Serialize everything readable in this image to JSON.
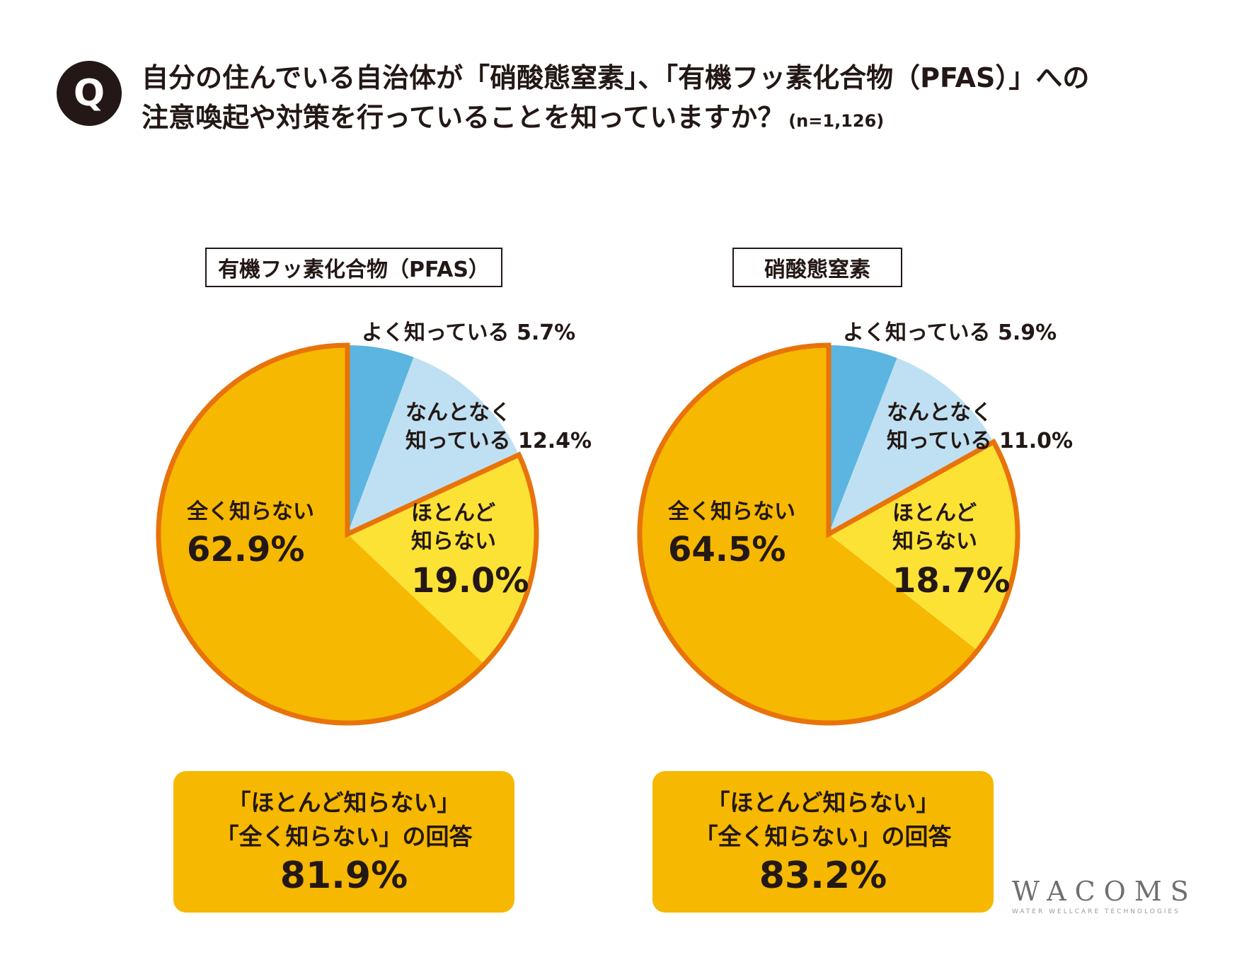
{
  "header": {
    "q_mark": "Q",
    "line1": "自分の住んでいる自治体が「硝酸態窒素」、「有機フッ素化合物（PFAS）」への",
    "line2": "注意喚起や対策を行っていることを知っていますか？",
    "n": "(n=1,126)"
  },
  "colors": {
    "yoku": "#5bb5e0",
    "nantonaku": "#bfe0f2",
    "hotondo": "#fde236",
    "mattaku": "#f6b800",
    "outline": "#e8730a"
  },
  "chart_data": [
    {
      "type": "pie",
      "title": "有機フッ素化合物（PFAS）",
      "slices": [
        {
          "label": "よく知っている",
          "value": 5.7,
          "value_label": "5.7%"
        },
        {
          "label": "なんとなく知っている",
          "value": 12.4,
          "value_label": "12.4%"
        },
        {
          "label": "ほとんど知らない",
          "value": 19.0,
          "value_label": "19.0%"
        },
        {
          "label": "全く知らない",
          "value": 62.9,
          "value_label": "62.9%"
        }
      ]
    },
    {
      "type": "pie",
      "title": "硝酸態窒素",
      "slices": [
        {
          "label": "よく知っている",
          "value": 5.9,
          "value_label": "5.9%"
        },
        {
          "label": "なんとなく知っている",
          "value": 11.0,
          "value_label": "11.0%"
        },
        {
          "label": "ほとんど知らない",
          "value": 18.7,
          "value_label": "18.7%"
        },
        {
          "label": "全く知らない",
          "value": 64.5,
          "value_label": "64.5%"
        }
      ]
    }
  ],
  "labels": {
    "yoku": "よく知っている",
    "nantonaku_1": "なんとなく",
    "nantonaku_2": "知っている",
    "hotondo_1": "ほとんど",
    "hotondo_2": "知らない",
    "mattaku": "全く知らない"
  },
  "summaries": [
    {
      "line1": "「ほとんど知らない」",
      "line2": "「全く知らない」の回答",
      "value": "81.9%"
    },
    {
      "line1": "「ほとんど知らない」",
      "line2": "「全く知らない」の回答",
      "value": "83.2%"
    }
  ],
  "logo": {
    "name": "WACOMS",
    "tagline": "WATER WELLCARE TECHNOLOGIES"
  }
}
